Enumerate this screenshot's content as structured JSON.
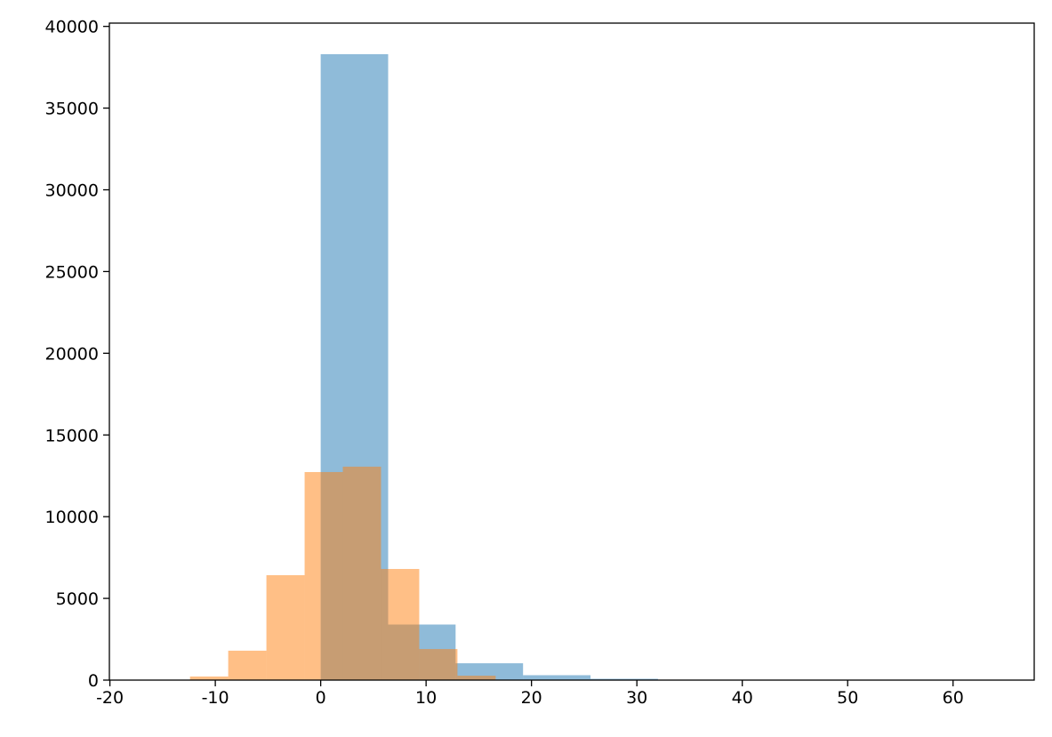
{
  "chart_data": {
    "type": "histogram",
    "series": [
      {
        "color": "#1f77b4",
        "bins": [
          0,
          6.4,
          12.8,
          19.2,
          25.6,
          32,
          38.4,
          44.8,
          51.2,
          57.6,
          64
        ],
        "values": [
          38300,
          3400,
          1030,
          300,
          80,
          20,
          10,
          5,
          3,
          2
        ]
      },
      {
        "color": "#ff7f0e",
        "bins": [
          -16.025,
          -12.4,
          -8.775,
          -5.15,
          -1.525,
          2.1,
          5.725,
          9.35,
          12.975,
          16.6,
          20.225
        ],
        "values": [
          10,
          220,
          1800,
          6420,
          12730,
          13060,
          6800,
          1900,
          270,
          20
        ]
      }
    ],
    "alpha": 0.5,
    "xlim": [
      -20.05,
      67.7
    ],
    "xticks": [
      -20,
      -10,
      0,
      10,
      20,
      30,
      40,
      50,
      60
    ],
    "ylim": [
      0,
      40200
    ],
    "yticks": [
      0,
      5000,
      10000,
      15000,
      20000,
      25000,
      30000,
      35000,
      40000
    ]
  }
}
